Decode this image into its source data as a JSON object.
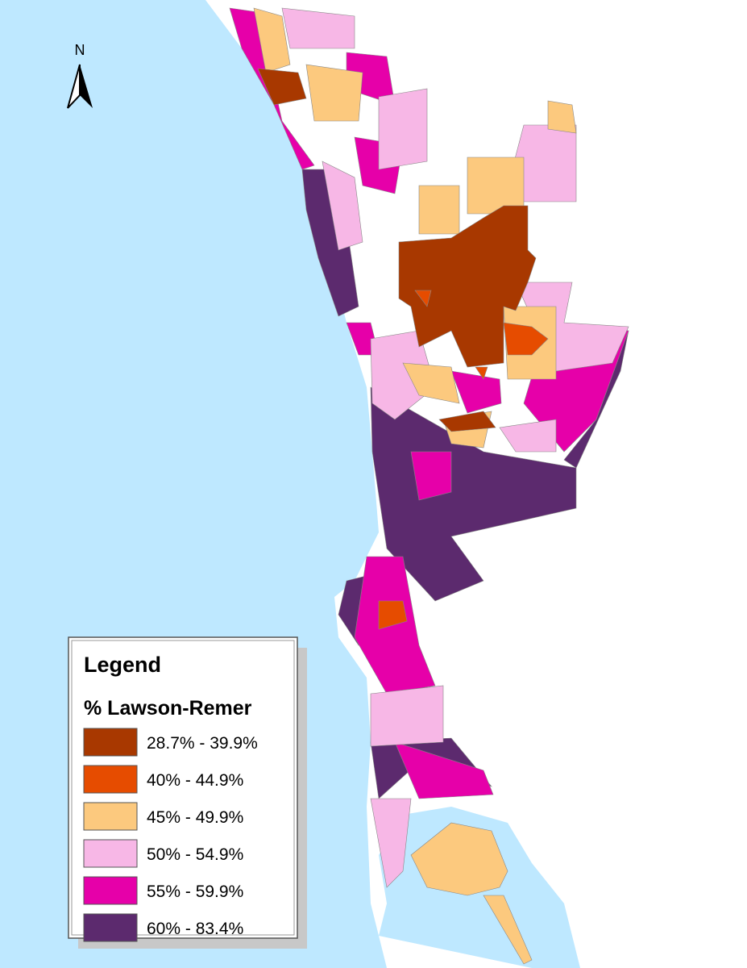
{
  "legend": {
    "title": "Legend",
    "subtitle": "% Lawson-Remer",
    "items": [
      {
        "label": "28.7% - 39.9%",
        "color": "#a83800"
      },
      {
        "label": "40% - 44.9%",
        "color": "#e64c00"
      },
      {
        "label": "45% - 49.9%",
        "color": "#fcc97e"
      },
      {
        "label": "50% - 54.9%",
        "color": "#f7b7e6"
      },
      {
        "label": "55% - 59.9%",
        "color": "#e600a9"
      },
      {
        "label": "60% - 83.4%",
        "color": "#5c2a6e"
      }
    ]
  },
  "north_arrow": {
    "label": "N"
  }
}
